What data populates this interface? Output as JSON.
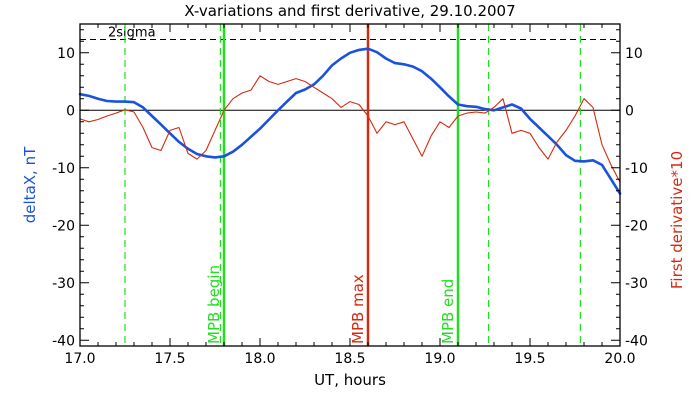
{
  "chart_data": {
    "type": "line",
    "title": "X-variations and first derivative, 29.10.2007",
    "xlabel": "UT, hours",
    "ylabel_left": "deltaX, nT",
    "ylabel_right": "First derivative*10",
    "xlim": [
      17.0,
      20.0
    ],
    "ylim": [
      -41,
      15
    ],
    "x_ticks": [
      "17.0",
      "17.5",
      "18.0",
      "18.5",
      "19.0",
      "19.5",
      "20.0"
    ],
    "y_ticks": [
      "10",
      "0",
      "-10",
      "-20",
      "-30",
      "-40"
    ],
    "grid": false,
    "colors": {
      "series_deltaX": "#1a52e0",
      "series_derivative": "#d42a10",
      "mpb_begin_end": "#22dd22",
      "mpb_max": "#d42a10",
      "axes": "#000000"
    },
    "reference_lines": {
      "zero_line": 0,
      "sigma_label": "2sigma",
      "sigma_value": 12.3
    },
    "vertical_markers": [
      {
        "x": 17.8,
        "label": "MPB begin",
        "kind": "solid-green"
      },
      {
        "x": 18.6,
        "label": "MPB max",
        "kind": "solid-red"
      },
      {
        "x": 19.1,
        "label": "MPB end",
        "kind": "solid-green"
      },
      {
        "x": 17.25,
        "label": "",
        "kind": "dashed-green"
      },
      {
        "x": 17.78,
        "label": "",
        "kind": "dashed-green"
      },
      {
        "x": 19.27,
        "label": "",
        "kind": "dashed-green"
      },
      {
        "x": 19.78,
        "label": "",
        "kind": "dashed-green"
      }
    ],
    "series": [
      {
        "color": "#1a52e0",
        "axis": "left",
        "x": [
          17.0,
          17.05,
          17.1,
          17.15,
          17.2,
          17.25,
          17.3,
          17.35,
          17.4,
          17.45,
          17.5,
          17.55,
          17.6,
          17.65,
          17.7,
          17.75,
          17.8,
          17.85,
          17.9,
          17.95,
          18.0,
          18.05,
          18.1,
          18.15,
          18.2,
          18.25,
          18.3,
          18.35,
          18.4,
          18.45,
          18.5,
          18.55,
          18.6,
          18.65,
          18.7,
          18.75,
          18.8,
          18.85,
          18.9,
          18.95,
          19.0,
          19.05,
          19.1,
          19.15,
          19.2,
          19.25,
          19.3,
          19.35,
          19.4,
          19.45,
          19.5,
          19.55,
          19.6,
          19.65,
          19.7,
          19.75,
          19.8,
          19.85,
          19.9,
          19.95,
          20.0
        ],
        "values": [
          2.8,
          2.5,
          2.0,
          1.6,
          1.5,
          1.5,
          1.4,
          0.5,
          -1.0,
          -2.5,
          -4.0,
          -5.5,
          -6.7,
          -7.6,
          -8.0,
          -8.2,
          -8.0,
          -7.2,
          -6.0,
          -4.6,
          -3.2,
          -1.6,
          0.0,
          1.5,
          3.0,
          3.6,
          4.5,
          6.0,
          7.8,
          9.0,
          10.0,
          10.5,
          10.7,
          10.1,
          9.0,
          8.2,
          8.0,
          7.6,
          6.8,
          5.5,
          4.0,
          2.4,
          1.0,
          0.7,
          0.6,
          0.2,
          0.0,
          0.5,
          1.0,
          0.3,
          -1.5,
          -3.0,
          -4.5,
          -6.0,
          -7.8,
          -8.8,
          -8.9,
          -8.7,
          -9.5,
          -12.0,
          -14.5
        ]
      },
      {
        "color": "#d42a10",
        "axis": "right",
        "x": [
          17.0,
          17.05,
          17.1,
          17.15,
          17.2,
          17.25,
          17.3,
          17.35,
          17.4,
          17.45,
          17.5,
          17.55,
          17.6,
          17.65,
          17.7,
          17.75,
          17.8,
          17.85,
          17.9,
          17.95,
          18.0,
          18.05,
          18.1,
          18.15,
          18.2,
          18.25,
          18.3,
          18.35,
          18.4,
          18.45,
          18.5,
          18.55,
          18.6,
          18.65,
          18.7,
          18.75,
          18.8,
          18.85,
          18.9,
          18.95,
          19.0,
          19.05,
          19.1,
          19.15,
          19.2,
          19.25,
          19.3,
          19.35,
          19.4,
          19.45,
          19.5,
          19.55,
          19.6,
          19.65,
          19.7,
          19.75,
          19.8,
          19.85,
          19.9,
          19.95,
          20.0
        ],
        "values": [
          -1.5,
          -2.0,
          -1.6,
          -1.0,
          -0.5,
          0.1,
          -0.3,
          -3.0,
          -6.5,
          -7.0,
          -3.5,
          -3.0,
          -7.5,
          -8.5,
          -7.0,
          -3.5,
          0.0,
          2.0,
          3.0,
          3.5,
          6.0,
          5.0,
          4.5,
          5.0,
          5.5,
          5.0,
          4.0,
          3.0,
          2.0,
          0.5,
          1.5,
          1.0,
          -1.0,
          -4.0,
          -2.0,
          -2.5,
          -2.0,
          -5.0,
          -8.0,
          -4.5,
          -2.0,
          -3.0,
          -1.0,
          -0.5,
          -0.3,
          -0.5,
          0.5,
          2.0,
          -4.0,
          -3.5,
          -4.0,
          -6.5,
          -8.5,
          -5.5,
          -3.5,
          -1.0,
          2.0,
          0.5,
          -6.0,
          -9.5,
          -12.5
        ]
      }
    ]
  }
}
